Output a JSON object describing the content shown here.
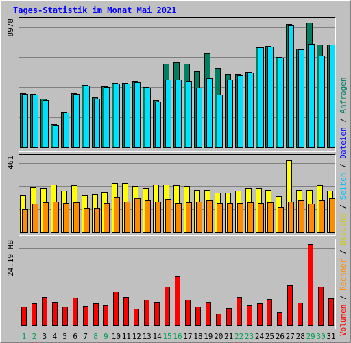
{
  "chart_data": {
    "type": "bar",
    "title": "Tages-Statistik im Monat Mai 2021",
    "categories": [
      "1",
      "2",
      "3",
      "4",
      "5",
      "6",
      "7",
      "8",
      "9",
      "10",
      "11",
      "12",
      "13",
      "14",
      "15",
      "16",
      "17",
      "18",
      "19",
      "20",
      "21",
      "22",
      "23",
      "24",
      "25",
      "26",
      "27",
      "28",
      "29",
      "30",
      "31"
    ],
    "weekend_days": [
      "1",
      "2",
      "8",
      "9",
      "15",
      "16",
      "22",
      "23",
      "29",
      "30"
    ],
    "panels": [
      {
        "id": "top",
        "max_label": "8978",
        "ymax": 8978,
        "series": [
          {
            "name": "Anfragen",
            "color": "#008060",
            "values": [
              3900,
              3850,
              3500,
              1700,
              2550,
              3900,
              4500,
              3600,
              4400,
              4650,
              4650,
              4800,
              4350,
              3400,
              6000,
              6100,
              6000,
              5500,
              6800,
              5700,
              5300,
              5300,
              5450,
              7200,
              7300,
              6500,
              8900,
              7100,
              8978,
              7400,
              7400
            ]
          },
          {
            "name": "Seiten",
            "color": "#00e0ff",
            "values": [
              3850,
              3800,
              3400,
              1650,
              2500,
              3850,
              4450,
              3500,
              4350,
              4600,
              4600,
              4700,
              4300,
              3300,
              4900,
              4900,
              4800,
              4300,
              5000,
              3800,
              4900,
              5200,
              5400,
              7200,
              7250,
              6450,
              8800,
              7050,
              7450,
              6600,
              7400
            ]
          }
        ]
      },
      {
        "id": "middle",
        "max_label": "461",
        "ymax": 461,
        "series": [
          {
            "name": "Besuche",
            "color": "#ffff00",
            "values": [
              235,
              285,
              280,
              305,
              265,
              300,
              235,
              240,
              255,
              310,
              310,
              295,
              280,
              305,
              305,
              300,
              295,
              270,
              270,
              250,
              250,
              265,
              280,
              280,
              270,
              230,
              461,
              270,
              270,
              300,
              265
            ]
          },
          {
            "name": "Rechner",
            "color": "#ff8c00",
            "values": [
              145,
              180,
              190,
              195,
              185,
              190,
              155,
              155,
              185,
              225,
              195,
              215,
              200,
              195,
              210,
              185,
              190,
              195,
              200,
              185,
              185,
              185,
              190,
              185,
              190,
              160,
              195,
              200,
              180,
              200,
              215
            ]
          }
        ]
      },
      {
        "id": "bottom",
        "max_label": "24.19 MB",
        "ymax": 24.19,
        "series": [
          {
            "name": "Volumen",
            "color": "#ff0000",
            "values": [
              5.5,
              6.5,
              8.5,
              7.0,
              5.5,
              8.2,
              5.8,
              6.5,
              6.0,
              10.0,
              8.5,
              5.0,
              7.5,
              7.0,
              11.5,
              14.5,
              7.5,
              5.5,
              7.0,
              3.5,
              5.2,
              8.5,
              6.0,
              6.5,
              7.8,
              3.8,
              11.8,
              6.8,
              24.19,
              11.5,
              8.0
            ]
          }
        ]
      }
    ],
    "legend": {
      "position": "right-vertical",
      "separator": " / ",
      "items": [
        {
          "label": "Volumen",
          "color": "#ff0000"
        },
        {
          "label": "Rechner",
          "color": "#ff8c00"
        },
        {
          "label": "Besuche",
          "color": "#cccc00"
        },
        {
          "label": "Seiten",
          "color": "#00bfff"
        },
        {
          "label": "Dateien",
          "color": "#0000ff"
        },
        {
          "label": "Anfragen",
          "color": "#008060"
        }
      ]
    },
    "grid": true
  }
}
